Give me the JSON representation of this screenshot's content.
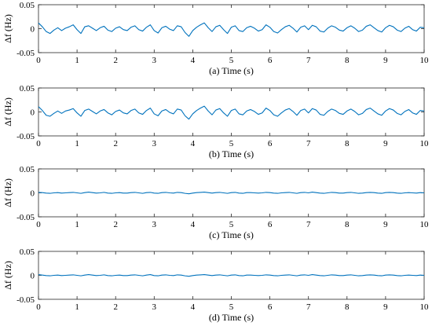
{
  "chart_data": [
    {
      "type": "line",
      "caption": "(a) Time (s)",
      "ylabel": "Δf (Hz)",
      "xlim": [
        0,
        10
      ],
      "ylim": [
        -0.05,
        0.05
      ],
      "xticks": [
        "0",
        "1",
        "2",
        "3",
        "4",
        "5",
        "6",
        "7",
        "8",
        "9",
        "10"
      ],
      "yticks": [
        "0.05",
        "0",
        "-0.05"
      ],
      "grid": false,
      "series": [
        {
          "color": "#0072BD",
          "x": [
            0,
            0.1,
            0.2,
            0.3,
            0.4,
            0.5,
            0.6,
            0.7,
            0.8,
            0.9,
            1.0,
            1.1,
            1.2,
            1.3,
            1.4,
            1.5,
            1.6,
            1.7,
            1.8,
            1.9,
            2.0,
            2.1,
            2.2,
            2.3,
            2.4,
            2.5,
            2.6,
            2.7,
            2.8,
            2.9,
            3.0,
            3.1,
            3.2,
            3.3,
            3.4,
            3.5,
            3.6,
            3.7,
            3.8,
            3.9,
            4.0,
            4.1,
            4.2,
            4.3,
            4.4,
            4.5,
            4.6,
            4.7,
            4.8,
            4.9,
            5.0,
            5.1,
            5.2,
            5.3,
            5.4,
            5.5,
            5.6,
            5.7,
            5.8,
            5.9,
            6.0,
            6.1,
            6.2,
            6.3,
            6.4,
            6.5,
            6.6,
            6.7,
            6.8,
            6.9,
            7.0,
            7.1,
            7.2,
            7.3,
            7.4,
            7.5,
            7.6,
            7.7,
            7.8,
            7.9,
            8.0,
            8.1,
            8.2,
            8.3,
            8.4,
            8.5,
            8.6,
            8.7,
            8.8,
            8.9,
            9.0,
            9.1,
            9.2,
            9.3,
            9.4,
            9.5,
            9.6,
            9.7,
            9.8,
            9.9,
            10.0
          ],
          "y": [
            0.012,
            0.004,
            -0.006,
            -0.01,
            -0.003,
            0.002,
            -0.004,
            0.001,
            0.004,
            0.008,
            -0.002,
            -0.01,
            0.004,
            0.006,
            0.001,
            -0.004,
            0.002,
            0.005,
            -0.003,
            -0.006,
            0.001,
            0.004,
            -0.002,
            -0.004,
            0.003,
            0.006,
            -0.002,
            -0.005,
            0.003,
            0.008,
            -0.004,
            -0.009,
            0.002,
            0.005,
            -0.001,
            -0.004,
            0.006,
            0.004,
            -0.008,
            -0.016,
            -0.004,
            0.003,
            0.008,
            0.012,
            0.002,
            -0.006,
            0.004,
            0.007,
            -0.002,
            -0.01,
            0.003,
            0.006,
            -0.004,
            -0.006,
            0.002,
            0.005,
            0.001,
            -0.005,
            -0.002,
            0.008,
            0.003,
            -0.006,
            -0.009,
            -0.002,
            0.004,
            0.007,
            0.001,
            -0.007,
            0.003,
            0.006,
            -0.002,
            0.007,
            0.004,
            -0.005,
            -0.007,
            0.001,
            0.006,
            0.003,
            -0.003,
            -0.005,
            0.002,
            0.006,
            0.001,
            -0.006,
            -0.003,
            0.005,
            0.008,
            0.002,
            -0.004,
            -0.007,
            0.002,
            0.007,
            0.004,
            -0.003,
            -0.006,
            0.001,
            0.005,
            -0.002,
            -0.005,
            0.003,
            0.002
          ]
        }
      ]
    },
    {
      "type": "line",
      "caption": "(b) Time (s)",
      "ylabel": "Δf (Hz)",
      "xlim": [
        0,
        10
      ],
      "ylim": [
        -0.05,
        0.05
      ],
      "xticks": [
        "0",
        "1",
        "2",
        "3",
        "4",
        "5",
        "6",
        "7",
        "8",
        "9",
        "10"
      ],
      "yticks": [
        "0.05",
        "0",
        "-0.05"
      ],
      "grid": false,
      "series": [
        {
          "color": "#0072BD",
          "x": [
            0,
            0.1,
            0.2,
            0.3,
            0.4,
            0.5,
            0.6,
            0.7,
            0.8,
            0.9,
            1.0,
            1.1,
            1.2,
            1.3,
            1.4,
            1.5,
            1.6,
            1.7,
            1.8,
            1.9,
            2.0,
            2.1,
            2.2,
            2.3,
            2.4,
            2.5,
            2.6,
            2.7,
            2.8,
            2.9,
            3.0,
            3.1,
            3.2,
            3.3,
            3.4,
            3.5,
            3.6,
            3.7,
            3.8,
            3.9,
            4.0,
            4.1,
            4.2,
            4.3,
            4.4,
            4.5,
            4.6,
            4.7,
            4.8,
            4.9,
            5.0,
            5.1,
            5.2,
            5.3,
            5.4,
            5.5,
            5.6,
            5.7,
            5.8,
            5.9,
            6.0,
            6.1,
            6.2,
            6.3,
            6.4,
            6.5,
            6.6,
            6.7,
            6.8,
            6.9,
            7.0,
            7.1,
            7.2,
            7.3,
            7.4,
            7.5,
            7.6,
            7.7,
            7.8,
            7.9,
            8.0,
            8.1,
            8.2,
            8.3,
            8.4,
            8.5,
            8.6,
            8.7,
            8.8,
            8.9,
            9.0,
            9.1,
            9.2,
            9.3,
            9.4,
            9.5,
            9.6,
            9.7,
            9.8,
            9.9,
            10.0
          ],
          "y": [
            0.011,
            0.003,
            -0.007,
            -0.009,
            -0.003,
            0.002,
            -0.003,
            0.002,
            0.004,
            0.007,
            -0.002,
            -0.009,
            0.003,
            0.006,
            0.001,
            -0.004,
            0.002,
            0.005,
            -0.002,
            -0.006,
            0.001,
            0.004,
            -0.002,
            -0.004,
            0.003,
            0.006,
            -0.002,
            -0.005,
            0.003,
            0.008,
            -0.004,
            -0.008,
            0.002,
            0.005,
            -0.001,
            -0.004,
            0.006,
            0.004,
            -0.008,
            -0.015,
            -0.004,
            0.003,
            0.008,
            0.012,
            0.002,
            -0.006,
            0.004,
            0.007,
            -0.002,
            -0.009,
            0.003,
            0.006,
            -0.004,
            -0.006,
            0.002,
            0.005,
            0.001,
            -0.005,
            -0.002,
            0.008,
            0.003,
            -0.006,
            -0.009,
            -0.002,
            0.004,
            0.007,
            0.001,
            -0.007,
            0.003,
            0.006,
            -0.002,
            0.007,
            0.004,
            -0.005,
            -0.007,
            0.001,
            0.006,
            0.003,
            -0.003,
            -0.005,
            0.002,
            0.006,
            0.001,
            -0.006,
            -0.003,
            0.005,
            0.008,
            0.002,
            -0.004,
            -0.007,
            0.002,
            0.007,
            0.004,
            -0.003,
            -0.006,
            0.001,
            0.005,
            -0.002,
            -0.005,
            0.003,
            0.002
          ]
        }
      ]
    },
    {
      "type": "line",
      "caption": "(c) Time (s)",
      "ylabel": "Δf (Hz)",
      "xlim": [
        0,
        10
      ],
      "ylim": [
        -0.05,
        0.05
      ],
      "xticks": [
        "0",
        "1",
        "2",
        "3",
        "4",
        "5",
        "6",
        "7",
        "8",
        "9",
        "10"
      ],
      "yticks": [
        "0.05",
        "0",
        "-0.05"
      ],
      "grid": false,
      "series": [
        {
          "color": "#0072BD",
          "x": [
            0,
            0.1,
            0.2,
            0.3,
            0.4,
            0.5,
            0.6,
            0.7,
            0.8,
            0.9,
            1.0,
            1.1,
            1.2,
            1.3,
            1.4,
            1.5,
            1.6,
            1.7,
            1.8,
            1.9,
            2.0,
            2.1,
            2.2,
            2.3,
            2.4,
            2.5,
            2.6,
            2.7,
            2.8,
            2.9,
            3.0,
            3.1,
            3.2,
            3.3,
            3.4,
            3.5,
            3.6,
            3.7,
            3.8,
            3.9,
            4.0,
            4.1,
            4.2,
            4.3,
            4.4,
            4.5,
            4.6,
            4.7,
            4.8,
            4.9,
            5.0,
            5.1,
            5.2,
            5.3,
            5.4,
            5.5,
            5.6,
            5.7,
            5.8,
            5.9,
            6.0,
            6.1,
            6.2,
            6.3,
            6.4,
            6.5,
            6.6,
            6.7,
            6.8,
            6.9,
            7.0,
            7.1,
            7.2,
            7.3,
            7.4,
            7.5,
            7.6,
            7.7,
            7.8,
            7.9,
            8.0,
            8.1,
            8.2,
            8.3,
            8.4,
            8.5,
            8.6,
            8.7,
            8.8,
            8.9,
            9.0,
            9.1,
            9.2,
            9.3,
            9.4,
            9.5,
            9.6,
            9.7,
            9.8,
            9.9,
            10.0
          ],
          "y": [
            0.001,
            0.0005,
            -0.0005,
            -0.001,
            0,
            0.0005,
            -0.0005,
            0,
            0.0005,
            0.001,
            0,
            -0.001,
            0.0005,
            0.0015,
            0.0005,
            -0.0005,
            0,
            0.001,
            -0.0005,
            -0.001,
            0,
            0.0005,
            -0.0005,
            -0.0005,
            0.0005,
            0.001,
            0,
            -0.001,
            0.0005,
            0.001,
            -0.0005,
            -0.001,
            0.0005,
            0.001,
            0,
            -0.0005,
            0.001,
            0.0005,
            -0.001,
            -0.002,
            -0.0005,
            0.0005,
            0.001,
            0.0015,
            0.0005,
            -0.0005,
            0.0005,
            0.001,
            0,
            -0.001,
            0.0005,
            0.001,
            -0.0005,
            -0.001,
            0.0005,
            0.0005,
            0,
            -0.0005,
            0,
            0.001,
            0.0005,
            -0.0005,
            -0.001,
            0,
            0.0005,
            0.001,
            0,
            -0.001,
            0.0005,
            0.001,
            0,
            0.0015,
            0.0005,
            -0.0005,
            -0.001,
            0,
            0.001,
            0.0005,
            -0.0005,
            -0.0005,
            0.0005,
            0.001,
            0,
            -0.001,
            -0.0005,
            0.0005,
            0.001,
            0.0005,
            -0.0005,
            -0.001,
            0.0005,
            0.001,
            0.0005,
            -0.0005,
            -0.001,
            0,
            0.0005,
            0,
            -0.0005,
            0.0005,
            0
          ]
        }
      ]
    },
    {
      "type": "line",
      "caption": "(d) Time (s)",
      "ylabel": "Δf (Hz)",
      "xlim": [
        0,
        10
      ],
      "ylim": [
        -0.05,
        0.05
      ],
      "xticks": [
        "0",
        "1",
        "2",
        "3",
        "4",
        "5",
        "6",
        "7",
        "8",
        "9",
        "10"
      ],
      "yticks": [
        "0.05",
        "0",
        "-0.05"
      ],
      "grid": false,
      "series": [
        {
          "color": "#0072BD",
          "x": [
            0,
            0.1,
            0.2,
            0.3,
            0.4,
            0.5,
            0.6,
            0.7,
            0.8,
            0.9,
            1.0,
            1.1,
            1.2,
            1.3,
            1.4,
            1.5,
            1.6,
            1.7,
            1.8,
            1.9,
            2.0,
            2.1,
            2.2,
            2.3,
            2.4,
            2.5,
            2.6,
            2.7,
            2.8,
            2.9,
            3.0,
            3.1,
            3.2,
            3.3,
            3.4,
            3.5,
            3.6,
            3.7,
            3.8,
            3.9,
            4.0,
            4.1,
            4.2,
            4.3,
            4.4,
            4.5,
            4.6,
            4.7,
            4.8,
            4.9,
            5.0,
            5.1,
            5.2,
            5.3,
            5.4,
            5.5,
            5.6,
            5.7,
            5.8,
            5.9,
            6.0,
            6.1,
            6.2,
            6.3,
            6.4,
            6.5,
            6.6,
            6.7,
            6.8,
            6.9,
            7.0,
            7.1,
            7.2,
            7.3,
            7.4,
            7.5,
            7.6,
            7.7,
            7.8,
            7.9,
            8.0,
            8.1,
            8.2,
            8.3,
            8.4,
            8.5,
            8.6,
            8.7,
            8.8,
            8.9,
            9.0,
            9.1,
            9.2,
            9.3,
            9.4,
            9.5,
            9.6,
            9.7,
            9.8,
            9.9,
            10.0
          ],
          "y": [
            0.0015,
            0.0005,
            -0.0005,
            -0.001,
            0,
            0.0005,
            -0.0005,
            0,
            0.0005,
            0.001,
            0,
            -0.001,
            0.0005,
            0.0015,
            0.0005,
            -0.0005,
            0,
            0.001,
            -0.0005,
            -0.001,
            0,
            0.0005,
            -0.0005,
            -0.0005,
            0.0005,
            0.001,
            0,
            -0.001,
            0.0005,
            0.0015,
            -0.0005,
            -0.001,
            0.0005,
            0.001,
            0,
            -0.0005,
            0.001,
            0.0005,
            -0.001,
            -0.002,
            -0.0005,
            0.0005,
            0.001,
            0.0015,
            0.0005,
            -0.0005,
            0.0005,
            0.001,
            0,
            -0.001,
            0.0005,
            0.001,
            -0.0005,
            -0.001,
            0.0005,
            0.0005,
            0,
            -0.0005,
            0,
            0.001,
            0.0005,
            -0.0005,
            -0.001,
            0,
            0.0005,
            0.001,
            0,
            -0.001,
            0.0005,
            0.001,
            0,
            0.0015,
            0.0005,
            -0.0005,
            -0.001,
            0,
            0.001,
            0.0005,
            -0.0005,
            -0.0005,
            0.0005,
            0.001,
            0,
            -0.001,
            -0.0005,
            0.0005,
            0.001,
            0.0005,
            -0.0005,
            -0.001,
            0.0005,
            0.001,
            0.0005,
            -0.0005,
            -0.001,
            0,
            0.0005,
            0,
            -0.0005,
            0.0005,
            0
          ]
        }
      ]
    }
  ]
}
